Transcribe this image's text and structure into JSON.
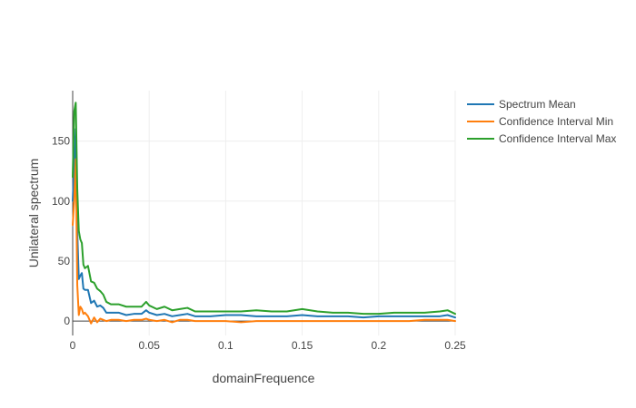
{
  "chart_data": {
    "type": "line",
    "title": "",
    "xlabel": "domainFrequence",
    "ylabel": "Unilateral spectrum",
    "xlim": [
      0,
      0.25
    ],
    "ylim": [
      -12,
      192
    ],
    "xticks": [
      0,
      0.05,
      0.1,
      0.15,
      0.2,
      0.25
    ],
    "xtick_labels": [
      "0",
      "0.05",
      "0.1",
      "0.15",
      "0.2",
      "0.25"
    ],
    "yticks": [
      0,
      50,
      100,
      150
    ],
    "ytick_labels": [
      "0",
      "50",
      "100",
      "150"
    ],
    "grid": true,
    "legend_position": "top-right",
    "series": [
      {
        "name": "Spectrum Mean",
        "color": "#1f77b4",
        "points": [
          [
            0,
            100
          ],
          [
            0.001,
            130
          ],
          [
            0.002,
            160
          ],
          [
            0.003,
            75
          ],
          [
            0.004,
            35
          ],
          [
            0.005,
            38
          ],
          [
            0.006,
            40
          ],
          [
            0.007,
            27
          ],
          [
            0.008,
            26
          ],
          [
            0.01,
            26
          ],
          [
            0.012,
            15
          ],
          [
            0.014,
            17
          ],
          [
            0.016,
            12
          ],
          [
            0.018,
            13
          ],
          [
            0.02,
            11
          ],
          [
            0.022,
            7
          ],
          [
            0.025,
            7
          ],
          [
            0.03,
            7
          ],
          [
            0.035,
            5
          ],
          [
            0.04,
            6
          ],
          [
            0.045,
            6
          ],
          [
            0.048,
            9
          ],
          [
            0.05,
            7
          ],
          [
            0.055,
            5
          ],
          [
            0.06,
            6
          ],
          [
            0.065,
            4
          ],
          [
            0.07,
            5
          ],
          [
            0.075,
            6
          ],
          [
            0.08,
            4
          ],
          [
            0.09,
            4
          ],
          [
            0.1,
            5
          ],
          [
            0.11,
            5
          ],
          [
            0.12,
            4
          ],
          [
            0.13,
            4
          ],
          [
            0.14,
            4
          ],
          [
            0.15,
            5
          ],
          [
            0.16,
            4
          ],
          [
            0.17,
            4
          ],
          [
            0.18,
            4
          ],
          [
            0.19,
            3
          ],
          [
            0.2,
            4
          ],
          [
            0.21,
            4
          ],
          [
            0.22,
            4
          ],
          [
            0.23,
            4
          ],
          [
            0.24,
            4
          ],
          [
            0.245,
            5
          ],
          [
            0.25,
            3
          ]
        ]
      },
      {
        "name": "Confidence Interval Min",
        "color": "#ff7f0e",
        "points": [
          [
            0,
            80
          ],
          [
            0.001,
            100
          ],
          [
            0.002,
            135
          ],
          [
            0.003,
            30
          ],
          [
            0.004,
            5
          ],
          [
            0.005,
            12
          ],
          [
            0.006,
            10
          ],
          [
            0.007,
            6
          ],
          [
            0.008,
            7
          ],
          [
            0.01,
            4
          ],
          [
            0.012,
            -2
          ],
          [
            0.014,
            3
          ],
          [
            0.016,
            -1
          ],
          [
            0.018,
            2
          ],
          [
            0.02,
            1
          ],
          [
            0.022,
            0
          ],
          [
            0.025,
            1
          ],
          [
            0.03,
            1
          ],
          [
            0.035,
            0
          ],
          [
            0.04,
            1
          ],
          [
            0.045,
            1
          ],
          [
            0.048,
            2
          ],
          [
            0.05,
            1
          ],
          [
            0.055,
            0
          ],
          [
            0.06,
            1
          ],
          [
            0.065,
            -1
          ],
          [
            0.07,
            1
          ],
          [
            0.075,
            1
          ],
          [
            0.08,
            0
          ],
          [
            0.09,
            0
          ],
          [
            0.1,
            0
          ],
          [
            0.11,
            -1
          ],
          [
            0.12,
            0
          ],
          [
            0.13,
            0
          ],
          [
            0.14,
            0
          ],
          [
            0.15,
            0
          ],
          [
            0.16,
            0
          ],
          [
            0.17,
            0
          ],
          [
            0.18,
            0
          ],
          [
            0.19,
            0
          ],
          [
            0.2,
            0
          ],
          [
            0.21,
            0
          ],
          [
            0.22,
            0
          ],
          [
            0.23,
            1
          ],
          [
            0.24,
            1
          ],
          [
            0.245,
            1
          ],
          [
            0.25,
            0
          ]
        ]
      },
      {
        "name": "Confidence Interval Max",
        "color": "#2ca02c",
        "points": [
          [
            0,
            120
          ],
          [
            0.001,
            175
          ],
          [
            0.002,
            182
          ],
          [
            0.003,
            110
          ],
          [
            0.004,
            75
          ],
          [
            0.005,
            68
          ],
          [
            0.006,
            65
          ],
          [
            0.007,
            47
          ],
          [
            0.008,
            44
          ],
          [
            0.01,
            46
          ],
          [
            0.012,
            33
          ],
          [
            0.014,
            32
          ],
          [
            0.016,
            27
          ],
          [
            0.018,
            25
          ],
          [
            0.02,
            22
          ],
          [
            0.022,
            16
          ],
          [
            0.025,
            14
          ],
          [
            0.03,
            14
          ],
          [
            0.035,
            12
          ],
          [
            0.04,
            12
          ],
          [
            0.045,
            12
          ],
          [
            0.048,
            16
          ],
          [
            0.05,
            13
          ],
          [
            0.055,
            10
          ],
          [
            0.06,
            12
          ],
          [
            0.065,
            9
          ],
          [
            0.07,
            10
          ],
          [
            0.075,
            11
          ],
          [
            0.08,
            8
          ],
          [
            0.09,
            8
          ],
          [
            0.1,
            8
          ],
          [
            0.11,
            8
          ],
          [
            0.12,
            9
          ],
          [
            0.13,
            8
          ],
          [
            0.14,
            8
          ],
          [
            0.15,
            10
          ],
          [
            0.16,
            8
          ],
          [
            0.17,
            7
          ],
          [
            0.18,
            7
          ],
          [
            0.19,
            6
          ],
          [
            0.2,
            6
          ],
          [
            0.21,
            7
          ],
          [
            0.22,
            7
          ],
          [
            0.23,
            7
          ],
          [
            0.24,
            8
          ],
          [
            0.245,
            9
          ],
          [
            0.25,
            6
          ]
        ]
      }
    ]
  }
}
